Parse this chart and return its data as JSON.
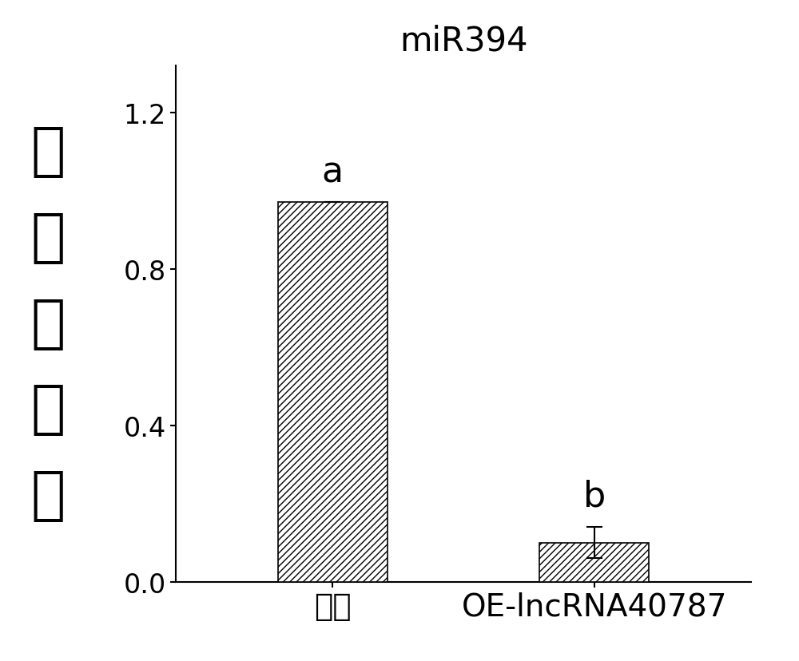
{
  "title": "miR394",
  "title_fontsize": 30,
  "categories": [
    "空载",
    "OE-lncRNA40787"
  ],
  "values": [
    0.97,
    0.1
  ],
  "errors": [
    0.0,
    0.04
  ],
  "labels": [
    "a",
    "b"
  ],
  "bar_color": "#ffffff",
  "bar_edgecolor": "#000000",
  "hatch": "////",
  "ylabel_chars": [
    "相",
    "对",
    "表",
    "达",
    "量"
  ],
  "ylabel_fontsize": 52,
  "ylim": [
    0.0,
    1.32
  ],
  "yticks": [
    0.0,
    0.4,
    0.8,
    1.2
  ],
  "tick_fontsize": 24,
  "xtick_fontsize": 28,
  "label_fontsize": 32,
  "bar_width": 0.42,
  "figsize": [
    10.0,
    8.29
  ],
  "dpi": 100,
  "background_color": "#ffffff"
}
